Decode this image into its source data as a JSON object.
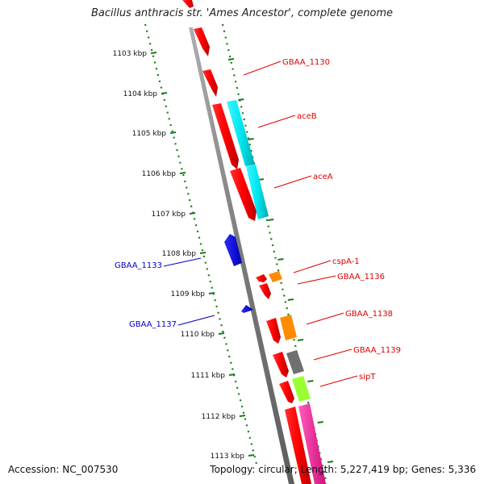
{
  "title": "Bacillus anthracis str. 'Ames Ancestor', complete genome",
  "footer": {
    "accession_label": "Accession:",
    "accession": "NC_007530",
    "topology_label": "Topology:",
    "topology": "circular",
    "length_label": "Length:",
    "length": "5,227,419 bp",
    "genes_label": "Genes:",
    "genes": "5,336"
  },
  "scale_ticks": [
    {
      "label": "1103 kbp",
      "kbp": 1103
    },
    {
      "label": "1104 kbp",
      "kbp": 1104
    },
    {
      "label": "1105 kbp",
      "kbp": 1105
    },
    {
      "label": "1106 kbp",
      "kbp": 1106
    },
    {
      "label": "1107 kbp",
      "kbp": 1107
    },
    {
      "label": "1108 kbp",
      "kbp": 1108
    },
    {
      "label": "1109 kbp",
      "kbp": 1109
    },
    {
      "label": "1110 kbp",
      "kbp": 1110
    },
    {
      "label": "1111 kbp",
      "kbp": 1111
    },
    {
      "label": "1112 kbp",
      "kbp": 1112
    },
    {
      "label": "1113 kbp",
      "kbp": 1113
    }
  ],
  "gene_labels_right": [
    {
      "text": "GBAA_1130",
      "color": "#e00000"
    },
    {
      "text": "aceB",
      "color": "#e00000"
    },
    {
      "text": "aceA",
      "color": "#e00000"
    },
    {
      "text": "cspA-1",
      "color": "#e00000"
    },
    {
      "text": "GBAA_1136",
      "color": "#e00000"
    },
    {
      "text": "GBAA_1138",
      "color": "#e00000"
    },
    {
      "text": "GBAA_1139",
      "color": "#e00000"
    },
    {
      "text": "sipT",
      "color": "#e00000"
    }
  ],
  "gene_labels_left": [
    {
      "text": "GBAA_1133",
      "color": "#0000c0"
    },
    {
      "text": "GBAA_1137",
      "color": "#0000c0"
    }
  ],
  "colors": {
    "backbone": "#8a8a8a",
    "scale": "#1a7a1a",
    "gene_red": "#ff0000",
    "gene_blue": "#0000ee",
    "gene_cyan": "#00e8f0",
    "gene_orange": "#ff8c00",
    "gene_gray": "#707070",
    "gene_lime": "#99ff33",
    "gene_pink": "#ff2ea6",
    "label_red": "#e00000",
    "label_blue": "#0000c0"
  }
}
